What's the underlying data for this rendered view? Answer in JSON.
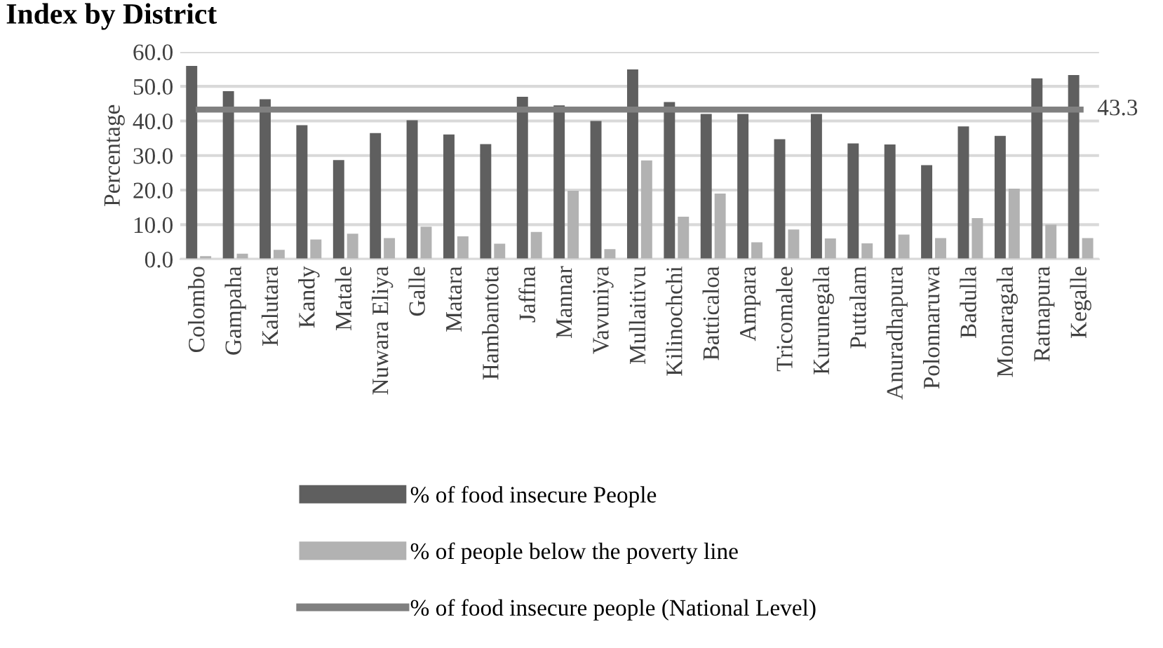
{
  "chart_data": {
    "type": "bar",
    "title": "Index by District",
    "ylabel": "Percentage",
    "categories": [
      "Colombo",
      "Gampaha",
      "Kalutara",
      "Kandy",
      "Matale",
      "Nuwara Eliya",
      "Galle",
      "Matara",
      "Hambantota",
      "Jaffna",
      "Mannar",
      "Vavuniya",
      "Mullaitivu",
      "Kilinochchi",
      "Batticaloa",
      "Ampara",
      "Tricomalee",
      "Kurunegala",
      "Puttalam",
      "Anuradhapura",
      "Polonnaruwa",
      "Badulla",
      "Monaragala",
      "Ratnapura",
      "Kegalle"
    ],
    "series": [
      {
        "name": "% of food insecure People",
        "color": "#5f5f5f",
        "values": [
          55.9,
          48.6,
          46.3,
          38.8,
          28.7,
          36.5,
          40.2,
          36.1,
          33.3,
          47.0,
          44.5,
          40.0,
          54.9,
          45.5,
          42.0,
          42.0,
          34.7,
          42.0,
          33.5,
          33.2,
          27.2,
          38.4,
          35.7,
          52.3,
          53.3
        ]
      },
      {
        "name": "% of people below the poverty line",
        "color": "#b2b2b2",
        "values": [
          0.9,
          1.6,
          2.7,
          5.7,
          7.4,
          6.1,
          9.4,
          6.6,
          4.5,
          7.9,
          19.8,
          2.9,
          28.6,
          12.3,
          19.0,
          4.9,
          8.6,
          6.0,
          4.6,
          7.1,
          6.1,
          11.9,
          20.4,
          10.0,
          6.1
        ]
      },
      {
        "name": "% of food insecure people (National Level)",
        "type": "line",
        "color": "#808080",
        "values": [
          43.3,
          43.3,
          43.3,
          43.3,
          43.3,
          43.3,
          43.3,
          43.3,
          43.3,
          43.3,
          43.3,
          43.3,
          43.3,
          43.3,
          43.3,
          43.3,
          43.3,
          43.3,
          43.3,
          43.3,
          43.3,
          43.3,
          43.3,
          43.3,
          43.3
        ],
        "value_labels": [
          null,
          null,
          null,
          null,
          null,
          null,
          null,
          null,
          null,
          null,
          null,
          null,
          null,
          null,
          null,
          null,
          null,
          null,
          null,
          null,
          null,
          null,
          null,
          null,
          "43.3"
        ]
      }
    ],
    "ylim": [
      0,
      60
    ],
    "yticks": [
      {
        "value": 0,
        "label": "0.0"
      },
      {
        "value": 10,
        "label": "10.0"
      },
      {
        "value": 20,
        "label": "20.0"
      },
      {
        "value": 30,
        "label": "30.0"
      },
      {
        "value": 40,
        "label": "40.0"
      },
      {
        "value": 50,
        "label": "50.0"
      },
      {
        "value": 60,
        "label": "60.0"
      }
    ],
    "grid": "y",
    "legend": "bottom left"
  }
}
